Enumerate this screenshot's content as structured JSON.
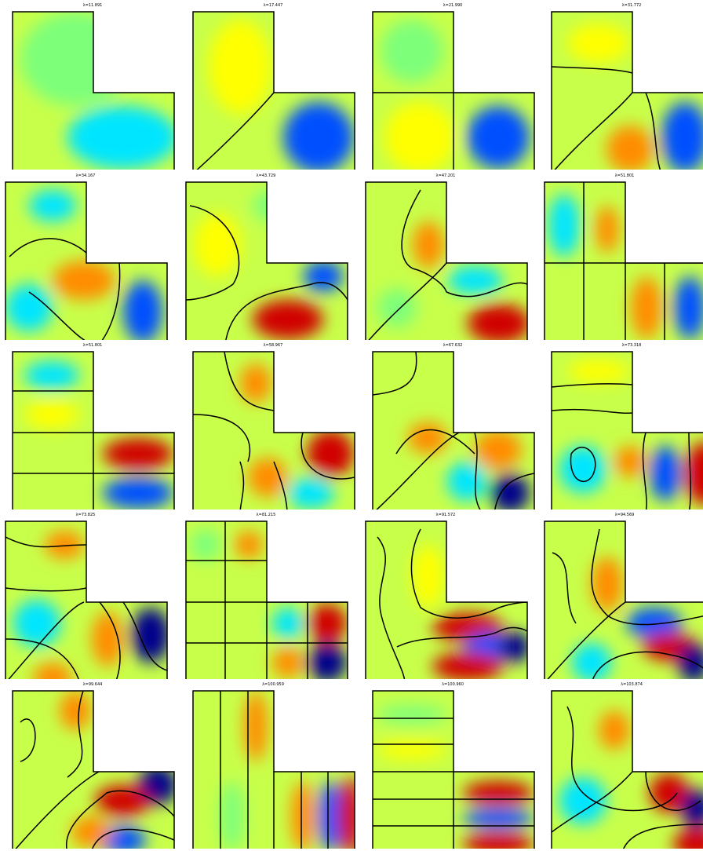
{
  "figure": {
    "panels": [
      {
        "title": "λ=11.891"
      },
      {
        "title": "λ=17.447"
      },
      {
        "title": "λ=21.990"
      },
      {
        "title": "λ=31.772"
      },
      {
        "title": "λ=34.167"
      },
      {
        "title": "λ=43.729"
      },
      {
        "title": "λ=47.201"
      },
      {
        "title": "λ=51.801"
      },
      {
        "title": "λ=51.801"
      },
      {
        "title": "λ=58.967"
      },
      {
        "title": "λ=67.632"
      },
      {
        "title": "λ=73.318"
      },
      {
        "title": "λ=73.825"
      },
      {
        "title": "λ=81.215"
      },
      {
        "title": "λ=91.572"
      },
      {
        "title": "λ=94.569"
      },
      {
        "title": "λ=99.644"
      },
      {
        "title": "λ=100.959"
      },
      {
        "title": "λ=100.960"
      },
      {
        "title": "λ=103.874"
      }
    ],
    "colormap": [
      "#00008b",
      "#0050ff",
      "#00e5ff",
      "#7dff7a",
      "#ffff00",
      "#ff8c00",
      "#d00000"
    ]
  }
}
